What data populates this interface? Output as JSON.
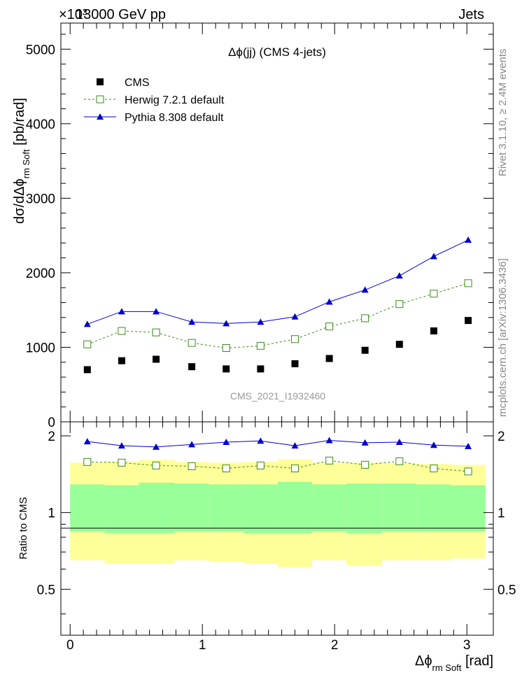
{
  "header": {
    "left_label": "13000 GeV pp",
    "right_label": "Jets",
    "exponent_label": "×10³"
  },
  "side_labels": {
    "rivet": "Rivet 3.1.10, ≥ 2.4M events",
    "mcplots": "mcplots.cern.ch [arXiv:1306.3436]"
  },
  "watermark": "CMS_2021_I1932460",
  "chart_data": [
    {
      "type": "line",
      "title": "Δϕ(jj) (CMS 4-jets)",
      "ylabel": "dσ/dΔϕ_rm Soft [pb/rad]",
      "xlim": [
        -0.07,
        3.2
      ],
      "ylim": [
        0,
        5350
      ],
      "y_ticks": [
        0,
        1000,
        2000,
        3000,
        4000,
        5000
      ],
      "x": [
        0.13,
        0.39,
        0.65,
        0.92,
        1.18,
        1.44,
        1.7,
        1.96,
        2.23,
        2.49,
        2.75,
        3.01
      ],
      "series": [
        {
          "name": "CMS",
          "style": "markers",
          "color": "#000000",
          "values": [
            700,
            820,
            840,
            740,
            710,
            710,
            780,
            850,
            960,
            1040,
            1220,
            1360
          ]
        },
        {
          "name": "Herwig 7.2.1 default",
          "style": "dashed-open-square",
          "color": "#3a8a1a",
          "values": [
            1040,
            1220,
            1200,
            1060,
            990,
            1020,
            1110,
            1280,
            1390,
            1580,
            1720,
            1860
          ]
        },
        {
          "name": "Pythia 8.308 default",
          "style": "solid-triangle",
          "color": "#0000cc",
          "values": [
            1310,
            1480,
            1480,
            1340,
            1320,
            1340,
            1410,
            1610,
            1770,
            1960,
            2220,
            2440
          ]
        }
      ],
      "legend": "top-left"
    },
    {
      "type": "line",
      "ylabel": "Ratio to CMS",
      "xlabel": "Δϕ_rm Soft [rad]",
      "xlim": [
        -0.07,
        3.2
      ],
      "ylim": [
        0.33,
        2.27
      ],
      "x_ticks": [
        0,
        1,
        2,
        3
      ],
      "y_ticks": [
        0.5,
        1,
        2
      ],
      "x": [
        0.13,
        0.39,
        0.65,
        0.92,
        1.18,
        1.44,
        1.7,
        1.96,
        2.23,
        2.49,
        2.75,
        3.01
      ],
      "bin_edges": [
        0.0,
        0.26,
        0.52,
        0.79,
        1.05,
        1.31,
        1.57,
        1.83,
        2.09,
        2.36,
        2.62,
        2.88,
        3.14
      ],
      "band_inner": {
        "color": "#99ff99",
        "low": [
          0.84,
          0.83,
          0.83,
          0.84,
          0.84,
          0.83,
          0.83,
          0.84,
          0.83,
          0.84,
          0.84,
          0.84
        ],
        "high": [
          1.29,
          1.28,
          1.31,
          1.3,
          1.29,
          1.29,
          1.32,
          1.29,
          1.3,
          1.3,
          1.29,
          1.28
        ]
      },
      "band_outer": {
        "color": "#ffff99",
        "low": [
          0.65,
          0.63,
          0.63,
          0.65,
          0.64,
          0.63,
          0.61,
          0.65,
          0.62,
          0.65,
          0.65,
          0.66
        ],
        "high": [
          1.57,
          1.59,
          1.61,
          1.58,
          1.57,
          1.58,
          1.62,
          1.57,
          1.57,
          1.56,
          1.55,
          1.54
        ]
      },
      "series": [
        {
          "name": "Herwig 7.2.1 default",
          "color": "#3a8a1a",
          "values": [
            1.58,
            1.57,
            1.53,
            1.52,
            1.49,
            1.53,
            1.49,
            1.6,
            1.54,
            1.59,
            1.49,
            1.45
          ]
        },
        {
          "name": "Pythia 8.308 default",
          "color": "#0000cc",
          "values": [
            1.9,
            1.83,
            1.81,
            1.85,
            1.89,
            1.91,
            1.83,
            1.92,
            1.88,
            1.89,
            1.84,
            1.82
          ]
        }
      ]
    }
  ]
}
